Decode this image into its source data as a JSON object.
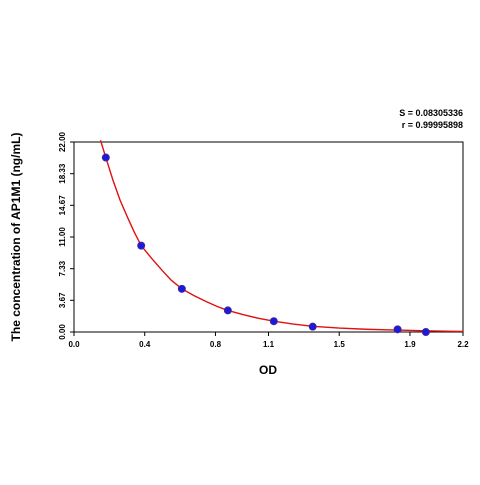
{
  "stats": {
    "s_text": "S = 0.08305336",
    "r_text": "r = 0.99995898"
  },
  "colors": {
    "curve": "#e01010",
    "point_fill": "#1a1adf",
    "point_stroke": "#4a2a8a",
    "frame": "#000000",
    "ticks": "#000000"
  },
  "chart_data": {
    "type": "scatter",
    "title": "",
    "xlabel": "OD",
    "ylabel": "The concentration of AP1M1 (ng/mL)",
    "xlim": [
      0.0,
      2.2
    ],
    "ylim": [
      0.0,
      22.0
    ],
    "x_ticks": [
      0.0,
      0.4,
      0.8,
      1.1,
      1.5,
      1.9,
      2.2
    ],
    "x_tick_labels": [
      "0.0",
      "0.4",
      "0.8",
      "1.1",
      "1.5",
      "1.9",
      "2.2"
    ],
    "y_ticks": [
      0.0,
      3.67,
      7.33,
      11.0,
      14.67,
      18.33,
      22.0
    ],
    "y_tick_labels": [
      "0.00",
      "3.67",
      "7.33",
      "11.00",
      "14.67",
      "18.33",
      "22.00"
    ],
    "grid": false,
    "points": [
      {
        "x": 0.18,
        "y": 20.2
      },
      {
        "x": 0.38,
        "y": 10.0
      },
      {
        "x": 0.61,
        "y": 5.0
      },
      {
        "x": 0.87,
        "y": 2.5
      },
      {
        "x": 1.13,
        "y": 1.25
      },
      {
        "x": 1.35,
        "y": 0.62
      },
      {
        "x": 1.83,
        "y": 0.31
      },
      {
        "x": 1.99,
        "y": 0.0
      }
    ],
    "fit_curve": [
      {
        "x": 0.15,
        "y": 22.2
      },
      {
        "x": 0.18,
        "y": 20.2
      },
      {
        "x": 0.22,
        "y": 17.6
      },
      {
        "x": 0.26,
        "y": 15.3
      },
      {
        "x": 0.3,
        "y": 13.4
      },
      {
        "x": 0.34,
        "y": 11.6
      },
      {
        "x": 0.38,
        "y": 10.0
      },
      {
        "x": 0.44,
        "y": 8.5
      },
      {
        "x": 0.5,
        "y": 7.1
      },
      {
        "x": 0.55,
        "y": 6.0
      },
      {
        "x": 0.61,
        "y": 5.0
      },
      {
        "x": 0.68,
        "y": 4.2
      },
      {
        "x": 0.75,
        "y": 3.5
      },
      {
        "x": 0.81,
        "y": 2.95
      },
      {
        "x": 0.87,
        "y": 2.5
      },
      {
        "x": 0.95,
        "y": 2.05
      },
      {
        "x": 1.04,
        "y": 1.6
      },
      {
        "x": 1.13,
        "y": 1.25
      },
      {
        "x": 1.24,
        "y": 0.92
      },
      {
        "x": 1.35,
        "y": 0.66
      },
      {
        "x": 1.5,
        "y": 0.45
      },
      {
        "x": 1.65,
        "y": 0.32
      },
      {
        "x": 1.83,
        "y": 0.22
      },
      {
        "x": 1.99,
        "y": 0.14
      },
      {
        "x": 2.1,
        "y": 0.1
      },
      {
        "x": 2.2,
        "y": 0.07
      }
    ]
  }
}
